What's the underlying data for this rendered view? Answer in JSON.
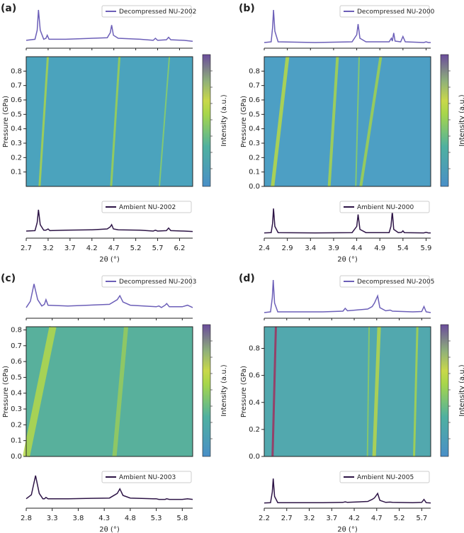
{
  "chart_data": [
    {
      "type": "heatmap-profiles",
      "label": "(a)",
      "xlabel": "2θ (°)",
      "ylabel": "Pressure (GPa)",
      "colorbar_label": "Intensity (a.u.)",
      "xlim": [
        2.7,
        6.5
      ],
      "xticks": [
        2.7,
        3.2,
        3.7,
        4.2,
        4.7,
        5.2,
        5.7,
        6.2
      ],
      "ylim": [
        0,
        0.9
      ],
      "yticks": [
        0.1,
        0.2,
        0.3,
        0.4,
        0.5,
        0.6,
        0.7,
        0.8
      ],
      "series": [
        {
          "name": "Decompressed NU-2002",
          "color": "#6c5fb8",
          "x": [
            2.7,
            2.9,
            2.95,
            2.98,
            3.02,
            3.1,
            3.15,
            3.18,
            3.22,
            3.6,
            4.2,
            4.55,
            4.62,
            4.65,
            4.69,
            4.8,
            5.3,
            5.6,
            5.65,
            5.7,
            5.9,
            5.95,
            6.0,
            6.3,
            6.5
          ],
          "values": [
            0.1,
            0.12,
            0.3,
            0.7,
            0.3,
            0.12,
            0.14,
            0.2,
            0.12,
            0.12,
            0.14,
            0.15,
            0.25,
            0.4,
            0.2,
            0.14,
            0.12,
            0.1,
            0.14,
            0.1,
            0.11,
            0.16,
            0.11,
            0.1,
            0.08
          ]
        },
        {
          "name": "Ambient NU-2002",
          "color": "#2d1446",
          "x": [
            2.7,
            2.9,
            2.95,
            2.98,
            3.02,
            3.1,
            3.15,
            3.2,
            3.24,
            3.6,
            4.2,
            4.55,
            4.62,
            4.65,
            4.69,
            4.8,
            5.3,
            5.6,
            5.65,
            5.7,
            5.9,
            5.95,
            6.0,
            6.3,
            6.5
          ],
          "values": [
            0.1,
            0.11,
            0.3,
            0.6,
            0.25,
            0.12,
            0.12,
            0.15,
            0.11,
            0.12,
            0.13,
            0.15,
            0.2,
            0.25,
            0.15,
            0.13,
            0.12,
            0.1,
            0.12,
            0.1,
            0.11,
            0.17,
            0.11,
            0.1,
            0.09
          ]
        }
      ]
    },
    {
      "type": "heatmap-profiles",
      "label": "(b)",
      "xlabel": "2θ (°)",
      "ylabel": "Pressure (GPa)",
      "colorbar_label": "Intensity (a.u.)",
      "xlim": [
        2.4,
        6.0
      ],
      "xticks": [
        2.4,
        2.9,
        3.4,
        3.9,
        4.4,
        4.9,
        5.4,
        5.9
      ],
      "ylim": [
        0,
        0.9
      ],
      "yticks": [
        {
          "value": 0,
          "label": "0.0"
        },
        0.1,
        0.2,
        0.3,
        0.4,
        0.5,
        0.6,
        0.7,
        0.8
      ],
      "series": [
        {
          "name": "Decompressed NU-2000",
          "color": "#6c5fb8",
          "x": [
            2.4,
            2.55,
            2.58,
            2.6,
            2.63,
            2.7,
            3.5,
            4.3,
            4.4,
            4.43,
            4.47,
            4.6,
            5.1,
            5.15,
            5.17,
            5.2,
            5.23,
            5.35,
            5.4,
            5.45,
            5.85,
            5.9,
            5.95,
            6.0
          ],
          "values": [
            0.08,
            0.1,
            0.5,
            1.0,
            0.4,
            0.1,
            0.08,
            0.1,
            0.3,
            0.6,
            0.2,
            0.1,
            0.1,
            0.2,
            0.12,
            0.35,
            0.12,
            0.1,
            0.25,
            0.1,
            0.08,
            0.1,
            0.08,
            0.08
          ]
        },
        {
          "name": "Ambient NU-2000",
          "color": "#2d1446",
          "x": [
            2.4,
            2.55,
            2.58,
            2.6,
            2.63,
            2.7,
            3.5,
            4.3,
            4.4,
            4.43,
            4.47,
            4.6,
            5.1,
            5.14,
            5.17,
            5.2,
            5.3,
            5.37,
            5.4,
            5.43,
            5.85,
            5.9,
            5.95,
            6.0
          ],
          "values": [
            0.08,
            0.09,
            0.4,
            0.9,
            0.3,
            0.09,
            0.08,
            0.09,
            0.3,
            0.7,
            0.2,
            0.09,
            0.09,
            0.3,
            0.8,
            0.2,
            0.09,
            0.1,
            0.15,
            0.09,
            0.08,
            0.1,
            0.08,
            0.08
          ]
        }
      ]
    },
    {
      "type": "heatmap-profiles",
      "label": "(c)",
      "xlabel": "2θ (°)",
      "ylabel": "Pressure (GPa)",
      "colorbar_label": "Intensity (a.u.)",
      "xlim": [
        2.8,
        6.0
      ],
      "xticks": [
        2.8,
        3.3,
        3.8,
        4.3,
        4.8,
        5.3,
        5.8
      ],
      "ylim": [
        0,
        0.82
      ],
      "yticks": [
        {
          "value": 0,
          "label": "0.0"
        },
        0.1,
        0.2,
        0.3,
        0.4,
        0.5,
        0.6,
        0.7,
        0.8
      ],
      "series": [
        {
          "name": "Decompressed NU-2003",
          "color": "#6c5fb8",
          "x": [
            2.8,
            2.88,
            2.95,
            3.02,
            3.1,
            3.15,
            3.18,
            3.22,
            3.6,
            4.4,
            4.55,
            4.6,
            4.66,
            4.8,
            5.3,
            5.35,
            5.4,
            5.47,
            5.5,
            5.55,
            5.8,
            5.9,
            6.0
          ],
          "values": [
            0.1,
            0.18,
            0.4,
            0.2,
            0.12,
            0.14,
            0.2,
            0.13,
            0.12,
            0.14,
            0.2,
            0.25,
            0.17,
            0.13,
            0.11,
            0.12,
            0.1,
            0.13,
            0.15,
            0.11,
            0.11,
            0.13,
            0.1
          ]
        },
        {
          "name": "Ambient NU-2003",
          "color": "#2d1446",
          "x": [
            2.8,
            2.9,
            2.98,
            3.05,
            3.12,
            3.15,
            3.18,
            3.22,
            3.6,
            4.4,
            4.55,
            4.6,
            4.66,
            4.8,
            5.25,
            5.3,
            5.35,
            5.47,
            5.5,
            5.55,
            5.8,
            5.9,
            6.0
          ],
          "values": [
            0.1,
            0.16,
            0.45,
            0.18,
            0.1,
            0.1,
            0.12,
            0.1,
            0.1,
            0.11,
            0.18,
            0.25,
            0.15,
            0.11,
            0.1,
            0.1,
            0.09,
            0.09,
            0.1,
            0.09,
            0.09,
            0.1,
            0.09
          ]
        }
      ]
    },
    {
      "type": "heatmap-profiles",
      "label": "(d)",
      "xlabel": "2θ (°)",
      "ylabel": "Pressure (GPa)",
      "colorbar_label": "Intensity (a.u.)",
      "xlim": [
        2.2,
        5.9
      ],
      "xticks": [
        2.2,
        2.7,
        3.2,
        3.7,
        4.2,
        4.7,
        5.2,
        5.7
      ],
      "ylim": [
        0,
        0.96
      ],
      "yticks": [
        {
          "value": 0,
          "label": "0.0"
        },
        0.2,
        0.4,
        0.6,
        0.8
      ],
      "series": [
        {
          "name": "Decompressed NU-2005",
          "color": "#6c5fb8",
          "x": [
            2.2,
            2.34,
            2.38,
            2.4,
            2.43,
            2.5,
            3.5,
            3.95,
            4.0,
            4.05,
            4.5,
            4.6,
            4.65,
            4.72,
            4.77,
            4.9,
            5.0,
            5.05,
            5.5,
            5.7,
            5.75,
            5.8,
            5.9
          ],
          "values": [
            0.08,
            0.1,
            0.5,
            1.0,
            0.35,
            0.1,
            0.1,
            0.12,
            0.2,
            0.13,
            0.18,
            0.25,
            0.35,
            0.55,
            0.22,
            0.13,
            0.15,
            0.12,
            0.1,
            0.11,
            0.25,
            0.1,
            0.08
          ]
        },
        {
          "name": "Ambient NU-2005",
          "color": "#2d1446",
          "x": [
            2.2,
            2.34,
            2.38,
            2.4,
            2.43,
            2.5,
            3.5,
            3.95,
            4.0,
            4.05,
            4.5,
            4.6,
            4.65,
            4.72,
            4.77,
            4.9,
            5.0,
            5.05,
            5.5,
            5.7,
            5.75,
            5.8,
            5.9
          ],
          "values": [
            0.08,
            0.09,
            0.45,
            0.9,
            0.3,
            0.09,
            0.09,
            0.1,
            0.12,
            0.1,
            0.13,
            0.2,
            0.25,
            0.4,
            0.17,
            0.1,
            0.11,
            0.1,
            0.09,
            0.1,
            0.2,
            0.09,
            0.08
          ]
        }
      ]
    }
  ]
}
